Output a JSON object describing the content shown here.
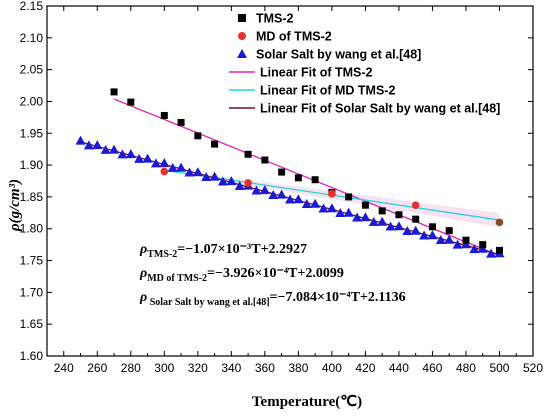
{
  "chart_data": {
    "type": "scatter",
    "xlabel": "Temperature(℃)",
    "ylabel": "ρ(g/cm³)",
    "xlim": [
      230,
      520
    ],
    "ylim": [
      1.6,
      2.15
    ],
    "x_ticks": [
      "240",
      "260",
      "280",
      "300",
      "320",
      "340",
      "360",
      "380",
      "400",
      "420",
      "440",
      "460",
      "480",
      "500",
      "520"
    ],
    "y_ticks": [
      "1.60",
      "1.65",
      "1.70",
      "1.75",
      "1.80",
      "1.85",
      "1.90",
      "1.95",
      "2.00",
      "2.05",
      "2.10",
      "2.15"
    ],
    "legend_position": "top-right",
    "series": [
      {
        "name": "TMS-2",
        "marker": "square",
        "color": "#000000",
        "points": [
          [
            270,
            2.015
          ],
          [
            280,
            1.999
          ],
          [
            300,
            1.978
          ],
          [
            310,
            1.967
          ],
          [
            320,
            1.946
          ],
          [
            330,
            1.933
          ],
          [
            350,
            1.917
          ],
          [
            360,
            1.908
          ],
          [
            370,
            1.889
          ],
          [
            380,
            1.88
          ],
          [
            390,
            1.877
          ],
          [
            400,
            1.857
          ],
          [
            410,
            1.85
          ],
          [
            420,
            1.837
          ],
          [
            430,
            1.828
          ],
          [
            440,
            1.822
          ],
          [
            450,
            1.815
          ],
          [
            460,
            1.803
          ],
          [
            470,
            1.797
          ],
          [
            480,
            1.782
          ],
          [
            490,
            1.775
          ],
          [
            500,
            1.766
          ]
        ]
      },
      {
        "name": "MD of TMS-2",
        "marker": "circle",
        "color": "#e8302a",
        "points": [
          [
            300,
            1.89
          ],
          [
            350,
            1.872
          ],
          [
            400,
            1.855
          ],
          [
            450,
            1.837
          ],
          [
            500,
            1.81
          ]
        ]
      },
      {
        "name": "Solar Salt by wang et al.[48]",
        "marker": "triangle",
        "color": "#1b1bd6",
        "points": []
      },
      {
        "name": "Linear Fit of TMS-2",
        "type": "line",
        "color": "#e020c0",
        "slope": -0.00107,
        "intercept": 2.2927,
        "x_range": [
          270,
          500
        ]
      },
      {
        "name": "Linear Fit of MD  TMS-2",
        "type": "line",
        "color": "#20d8d8",
        "slope": -0.0003926,
        "intercept": 2.0099,
        "x_range": [
          300,
          500
        ]
      },
      {
        "name": "Linear Fit of  Solar Salt by wang et al.[48]",
        "type": "line",
        "color": "#7a1020",
        "slope": -0.0007084,
        "intercept": 2.1136,
        "x_range": [
          250,
          500
        ]
      }
    ],
    "equations": [
      {
        "rho": "ρ",
        "sub": "TMS-2",
        "rhs": "=−1.07×10⁻³T+2.2927"
      },
      {
        "rho": "ρ",
        "sub": "MD of TMS-2",
        "rhs": "=−3.926×10⁻⁴T+2.0099"
      },
      {
        "rho": "ρ",
        "sub": " Solar Salt by wang et al.[48]",
        "rhs": "=−7.084×10⁻⁴T+2.1136"
      }
    ]
  }
}
